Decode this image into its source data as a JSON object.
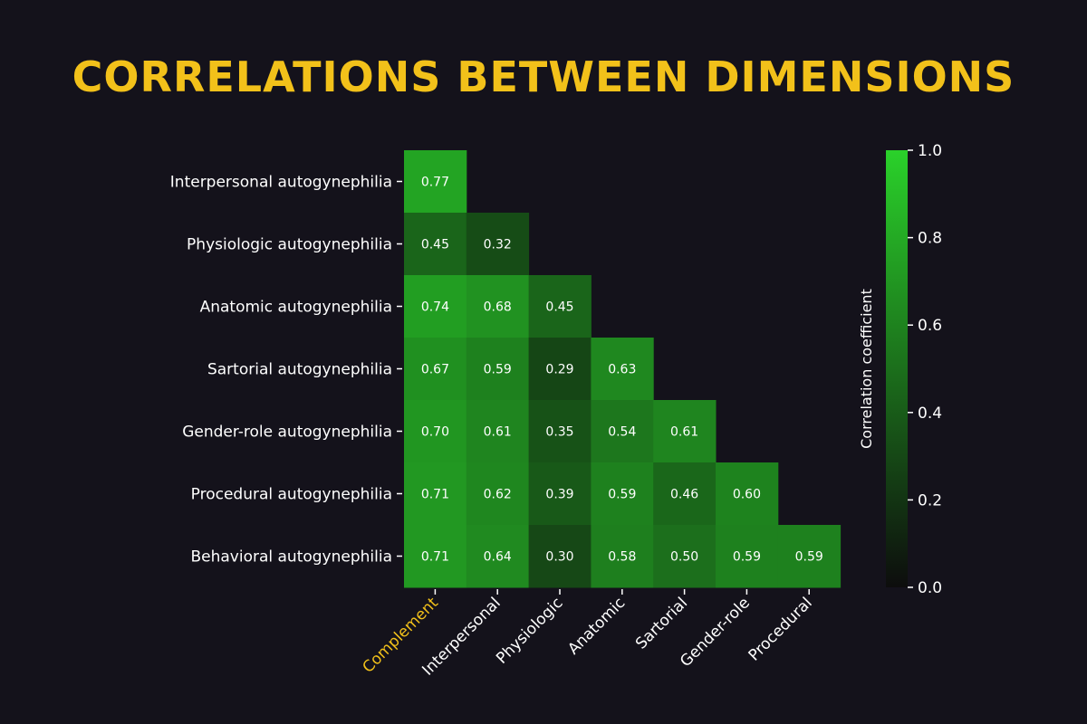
{
  "title": "CORRELATIONS BETWEEN DIMENSIONS",
  "chart_data": {
    "type": "heatmap",
    "title": "CORRELATIONS BETWEEN DIMENSIONS",
    "rows": [
      "Interpersonal autogynephilia",
      "Physiologic autogynephilia",
      "Anatomic autogynephilia",
      "Sartorial autogynephilia",
      "Gender-role autogynephilia",
      "Procedural autogynephilia",
      "Behavioral autogynephilia"
    ],
    "columns": [
      "Complement",
      "Interpersonal",
      "Physiologic",
      "Anatomic",
      "Sartorial",
      "Gender-role",
      "Procedural"
    ],
    "highlighted_column": "Complement",
    "values": [
      [
        0.77
      ],
      [
        0.45,
        0.32
      ],
      [
        0.74,
        0.68,
        0.45
      ],
      [
        0.67,
        0.59,
        0.29,
        0.63
      ],
      [
        0.7,
        0.61,
        0.35,
        0.54,
        0.61
      ],
      [
        0.71,
        0.62,
        0.39,
        0.59,
        0.46,
        0.6
      ],
      [
        0.71,
        0.64,
        0.3,
        0.58,
        0.5,
        0.59,
        0.59
      ]
    ],
    "value_labels": [
      [
        "0.77"
      ],
      [
        "0.45",
        "0.32"
      ],
      [
        "0.74",
        "0.68",
        "0.45"
      ],
      [
        "0.67",
        "0.59",
        "0.29",
        "0.63"
      ],
      [
        "0.70",
        "0.61",
        "0.35",
        "0.54",
        "0.61"
      ],
      [
        "0.71",
        "0.62",
        "0.39",
        "0.59",
        "0.46",
        "0.60"
      ],
      [
        "0.71",
        "0.64",
        "0.30",
        "0.58",
        "0.50",
        "0.59",
        "0.59"
      ]
    ],
    "colorbar": {
      "label": "Correlation coefficient",
      "range": [
        0.0,
        1.0
      ],
      "ticks": [
        "0.0",
        "0.2",
        "0.4",
        "0.6",
        "0.8",
        "1.0"
      ],
      "color_low": "#0d0d0d",
      "color_high": "#2ad12a"
    }
  },
  "colors": {
    "background": "#14121b",
    "title": "#f2c11a",
    "highlight_label": "#f2c11a",
    "text": "#ffffff"
  }
}
